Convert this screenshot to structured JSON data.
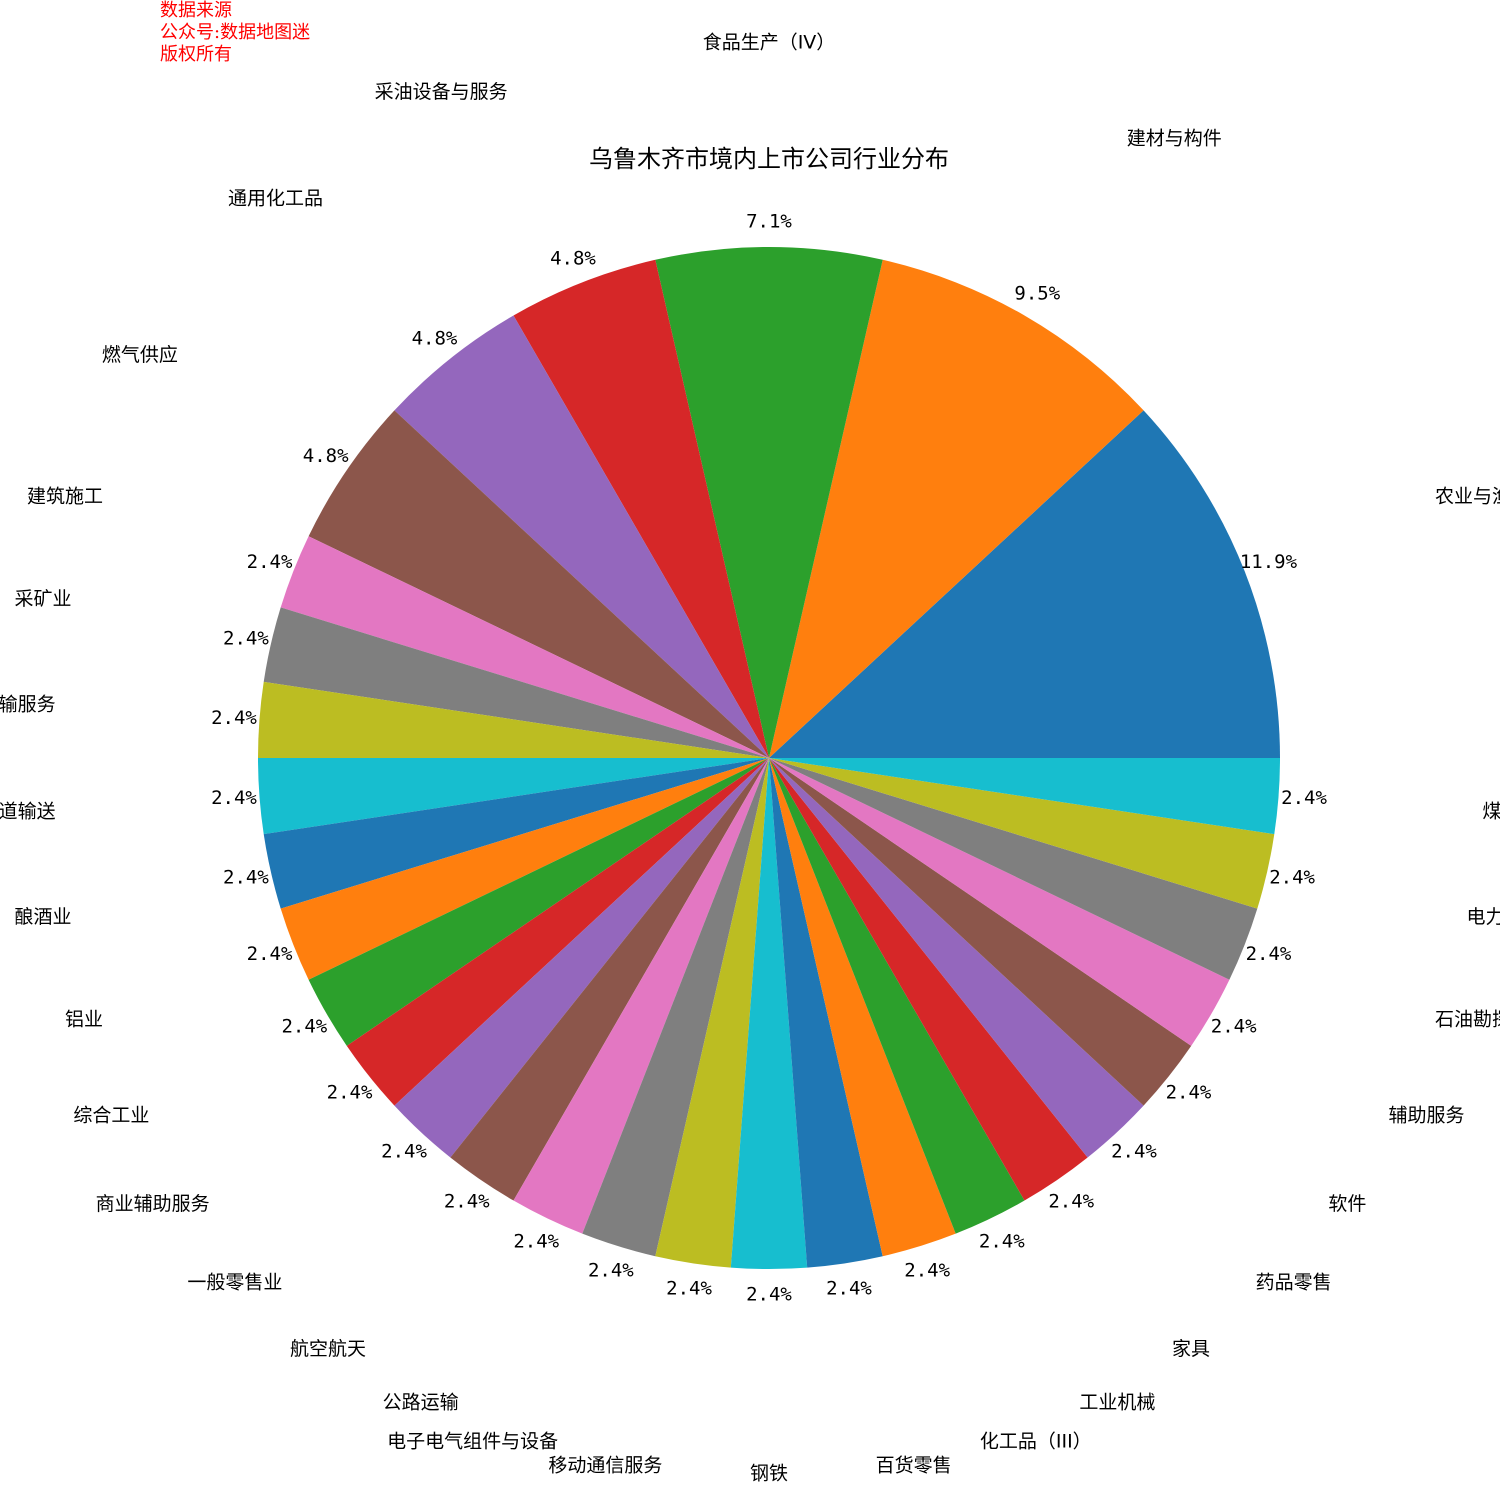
{
  "source_note": {
    "line1": "数据来源",
    "line2": "公众号:数据地图迷",
    "line3": "版权所有"
  },
  "chart_data": {
    "type": "pie",
    "title": "乌鲁木齐市境内上市公司行业分布",
    "categories": [
      "农业与渔业",
      "建材与构件",
      "食品生产（IV）",
      "采油设备与服务",
      "通用化工品",
      "燃气供应",
      "建筑施工",
      "采矿业",
      "运输服务",
      "管道输送",
      "酿酒业",
      "铝业",
      "综合工业",
      "商业辅助服务",
      "一般零售业",
      "航空航天",
      "公路运输",
      "电子电气组件与设备",
      "移动通信服务",
      "钢铁",
      "百货零售",
      "化工品（III）",
      "工业机械",
      "家具",
      "药品零售",
      "软件",
      "辅助服务",
      "石油勘探与开采",
      "电力（IV）",
      "煤炭开采"
    ],
    "values": [
      5,
      4,
      3,
      2,
      2,
      2,
      1,
      1,
      1,
      1,
      1,
      1,
      1,
      1,
      1,
      1,
      1,
      1,
      1,
      1,
      1,
      1,
      1,
      1,
      1,
      1,
      1,
      1,
      1,
      1
    ],
    "percent_labels": [
      "11.9%",
      "9.5%",
      "7.1%",
      "4.8%",
      "4.8%",
      "4.8%",
      "2.4%",
      "2.4%",
      "2.4%",
      "2.4%",
      "2.4%",
      "2.4%",
      "2.4%",
      "2.4%",
      "2.4%",
      "2.4%",
      "2.4%",
      "2.4%",
      "2.4%",
      "2.4%",
      "2.4%",
      "2.4%",
      "2.4%",
      "2.4%",
      "2.4%",
      "2.4%",
      "2.4%",
      "2.4%",
      "2.4%",
      "2.4%"
    ],
    "start_angle_deg": 0,
    "direction": "counterclockwise",
    "colors": [
      "#1f77b4",
      "#ff7f0e",
      "#2ca02c",
      "#d62728",
      "#9467bd",
      "#8c564b",
      "#e377c2",
      "#7f7f7f",
      "#bcbd22",
      "#17becf"
    ]
  }
}
